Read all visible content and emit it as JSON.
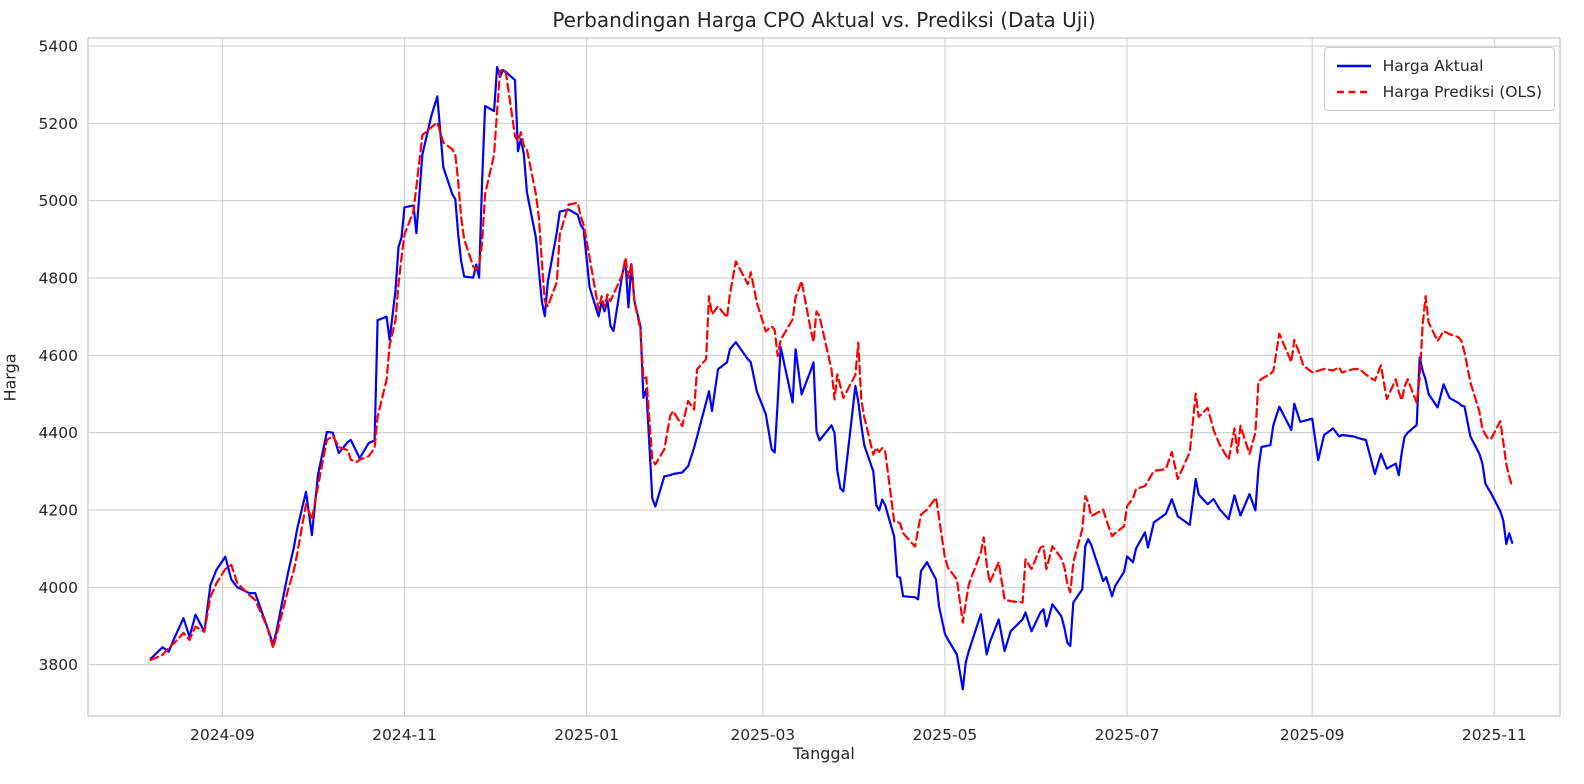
{
  "chart": {
    "background_color": "#ffffff",
    "grid_color": "#cccccc",
    "spine_color": "#cccccc",
    "text_color": "#262626"
  },
  "chart_data": {
    "type": "line",
    "title": "Perbandingan Harga CPO Aktual vs. Prediksi (Data Uji)",
    "xlabel": "Tanggal",
    "ylabel": "Harga",
    "grid": true,
    "legend_position": "upper right",
    "x_tick_labels": [
      "2024-09",
      "2024-11",
      "2025-01",
      "2025-03",
      "2025-05",
      "2025-07",
      "2025-09",
      "2025-11"
    ],
    "y_ticks": [
      3800,
      4000,
      4200,
      4400,
      4600,
      4800,
      5000,
      5200,
      5400
    ],
    "ylim": [
      3667,
      5421
    ],
    "xlim": [
      "2024-07-18",
      "2025-11-23"
    ],
    "series": [
      {
        "name": "Harga Aktual",
        "color": "#0000ff",
        "line_style": "solid",
        "points_column": 1
      },
      {
        "name": "Harga Prediksi (OLS)",
        "color": "#ff0000",
        "line_style": "dashed",
        "points_column": 2
      }
    ],
    "points_columns": [
      "date",
      "harga_aktual",
      "harga_prediksi_ols"
    ],
    "points": [
      [
        "2024-08-08",
        3815,
        3812
      ],
      [
        "2024-08-12",
        3845,
        3825
      ],
      [
        "2024-08-14",
        3833,
        3843
      ],
      [
        "2024-08-16",
        3870,
        3857
      ],
      [
        "2024-08-19",
        3920,
        3882
      ],
      [
        "2024-08-21",
        3872,
        3864
      ],
      [
        "2024-08-23",
        3929,
        3898
      ],
      [
        "2024-08-26",
        3885,
        3885
      ],
      [
        "2024-08-28",
        4006,
        3975
      ],
      [
        "2024-08-30",
        4045,
        4010
      ],
      [
        "2024-09-02",
        4079,
        4047
      ],
      [
        "2024-09-04",
        4020,
        4058
      ],
      [
        "2024-09-06",
        4000,
        4011
      ],
      [
        "2024-09-10",
        3985,
        3980
      ],
      [
        "2024-09-12",
        3985,
        3967
      ],
      [
        "2024-09-16",
        3898,
        3898
      ],
      [
        "2024-09-18",
        3852,
        3843
      ],
      [
        "2024-09-19",
        3882,
        3872
      ],
      [
        "2024-09-23",
        4037,
        3993
      ],
      [
        "2024-09-25",
        4105,
        4045
      ],
      [
        "2024-09-26",
        4149,
        4084
      ],
      [
        "2024-09-29",
        4247,
        4215
      ],
      [
        "2024-10-01",
        4135,
        4175
      ],
      [
        "2024-10-03",
        4290,
        4261
      ],
      [
        "2024-10-06",
        4402,
        4381
      ],
      [
        "2024-10-08",
        4400,
        4392
      ],
      [
        "2024-10-10",
        4347,
        4363
      ],
      [
        "2024-10-13",
        4376,
        4355
      ],
      [
        "2024-10-14",
        4381,
        4330
      ],
      [
        "2024-10-16",
        4350,
        4324
      ],
      [
        "2024-10-17",
        4334,
        4330
      ],
      [
        "2024-10-20",
        4373,
        4339
      ],
      [
        "2024-10-22",
        4380,
        4360
      ],
      [
        "2024-10-23",
        4691,
        4441
      ],
      [
        "2024-10-26",
        4700,
        4537
      ],
      [
        "2024-10-27",
        4640,
        4626
      ],
      [
        "2024-10-29",
        4768,
        4691
      ],
      [
        "2024-10-30",
        4880,
        4784
      ],
      [
        "2024-10-31",
        4905,
        4853
      ],
      [
        "2024-11-01",
        4983,
        4913
      ],
      [
        "2024-11-04",
        4988,
        4973
      ],
      [
        "2024-11-05",
        4916,
        5037
      ],
      [
        "2024-11-07",
        5120,
        5170
      ],
      [
        "2024-11-10",
        5220,
        5190
      ],
      [
        "2024-11-12",
        5270,
        5203
      ],
      [
        "2024-11-14",
        5087,
        5151
      ],
      [
        "2024-11-17",
        5017,
        5133
      ],
      [
        "2024-11-18",
        5004,
        5120
      ],
      [
        "2024-11-19",
        4913,
        5050
      ],
      [
        "2024-11-20",
        4843,
        4957
      ],
      [
        "2024-11-21",
        4804,
        4900
      ],
      [
        "2024-11-24",
        4801,
        4830
      ],
      [
        "2024-11-25",
        4835,
        4822
      ],
      [
        "2024-11-26",
        4801,
        4831
      ],
      [
        "2024-11-27",
        5050,
        4892
      ],
      [
        "2024-11-28",
        5245,
        5017
      ],
      [
        "2024-12-01",
        5232,
        5120
      ],
      [
        "2024-12-02",
        5346,
        5232
      ],
      [
        "2024-12-03",
        5320,
        5335
      ],
      [
        "2024-12-04",
        5338,
        5340
      ],
      [
        "2024-12-05",
        5333,
        5330
      ],
      [
        "2024-12-08",
        5312,
        5167
      ],
      [
        "2024-12-09",
        5128,
        5154
      ],
      [
        "2024-12-10",
        5159,
        5177
      ],
      [
        "2024-12-11",
        5120,
        5141
      ],
      [
        "2024-12-12",
        5022,
        5133
      ],
      [
        "2024-12-15",
        4905,
        5017
      ],
      [
        "2024-12-16",
        4820,
        4957
      ],
      [
        "2024-12-17",
        4740,
        4843
      ],
      [
        "2024-12-18",
        4701,
        4740
      ],
      [
        "2024-12-19",
        4790,
        4727
      ],
      [
        "2024-12-22",
        4918,
        4789
      ],
      [
        "2024-12-23",
        4972,
        4913
      ],
      [
        "2024-12-26",
        4977,
        4990
      ],
      [
        "2024-12-29",
        4964,
        4995
      ],
      [
        "2024-12-30",
        4938,
        4960
      ],
      [
        "2024-12-31",
        4926,
        4938
      ],
      [
        "2025-01-02",
        4776,
        4853
      ],
      [
        "2025-01-05",
        4701,
        4719
      ],
      [
        "2025-01-06",
        4737,
        4753
      ],
      [
        "2025-01-07",
        4714,
        4724
      ],
      [
        "2025-01-08",
        4742,
        4758
      ],
      [
        "2025-01-09",
        4676,
        4740
      ],
      [
        "2025-01-10",
        4663,
        4758
      ],
      [
        "2025-01-13",
        4813,
        4810
      ],
      [
        "2025-01-14",
        4844,
        4853
      ],
      [
        "2025-01-15",
        4724,
        4800
      ],
      [
        "2025-01-16",
        4836,
        4836
      ],
      [
        "2025-01-17",
        4740,
        4740
      ],
      [
        "2025-01-19",
        4676,
        4668
      ],
      [
        "2025-01-20",
        4490,
        4540
      ],
      [
        "2025-01-21",
        4513,
        4543
      ],
      [
        "2025-01-23",
        4230,
        4330
      ],
      [
        "2025-01-24",
        4209,
        4318
      ],
      [
        "2025-01-27",
        4287,
        4357
      ],
      [
        "2025-01-29",
        4290,
        4443
      ],
      [
        "2025-01-30",
        4293,
        4456
      ],
      [
        "2025-02-02",
        4297,
        4417
      ],
      [
        "2025-02-04",
        4313,
        4482
      ],
      [
        "2025-02-06",
        4361,
        4460
      ],
      [
        "2025-02-07",
        4390,
        4564
      ],
      [
        "2025-02-10",
        4478,
        4590
      ],
      [
        "2025-02-11",
        4507,
        4753
      ],
      [
        "2025-02-12",
        4456,
        4706
      ],
      [
        "2025-02-14",
        4564,
        4727
      ],
      [
        "2025-02-17",
        4582,
        4698
      ],
      [
        "2025-02-18",
        4616,
        4758
      ],
      [
        "2025-02-20",
        4634,
        4843
      ],
      [
        "2025-02-24",
        4590,
        4784
      ],
      [
        "2025-02-25",
        4582,
        4815
      ],
      [
        "2025-02-27",
        4507,
        4737
      ],
      [
        "2025-03-02",
        4448,
        4662
      ],
      [
        "2025-03-04",
        4357,
        4675
      ],
      [
        "2025-03-05",
        4349,
        4665
      ],
      [
        "2025-03-06",
        4480,
        4598
      ],
      [
        "2025-03-07",
        4621,
        4640
      ],
      [
        "2025-03-11",
        4478,
        4693
      ],
      [
        "2025-03-12",
        4616,
        4750
      ],
      [
        "2025-03-14",
        4499,
        4792
      ],
      [
        "2025-03-17",
        4560,
        4668
      ],
      [
        "2025-03-18",
        4582,
        4634
      ],
      [
        "2025-03-19",
        4403,
        4714
      ],
      [
        "2025-03-20",
        4380,
        4701
      ],
      [
        "2025-03-24",
        4419,
        4564
      ],
      [
        "2025-03-25",
        4400,
        4486
      ],
      [
        "2025-03-26",
        4300,
        4551
      ],
      [
        "2025-03-27",
        4256,
        4520
      ],
      [
        "2025-03-28",
        4248,
        4490
      ],
      [
        "2025-04-01",
        4521,
        4550
      ],
      [
        "2025-04-02",
        4480,
        4633
      ],
      [
        "2025-04-03",
        4419,
        4485
      ],
      [
        "2025-04-04",
        4367,
        4440
      ],
      [
        "2025-04-07",
        4300,
        4343
      ],
      [
        "2025-04-08",
        4212,
        4361
      ],
      [
        "2025-04-09",
        4199,
        4350
      ],
      [
        "2025-04-10",
        4227,
        4360
      ],
      [
        "2025-04-11",
        4212,
        4351
      ],
      [
        "2025-04-14",
        4131,
        4170
      ],
      [
        "2025-04-15",
        4028,
        4170
      ],
      [
        "2025-04-16",
        4025,
        4165
      ],
      [
        "2025-04-17",
        3977,
        4140
      ],
      [
        "2025-04-21",
        3974,
        4105
      ],
      [
        "2025-04-22",
        3969,
        4150
      ],
      [
        "2025-04-23",
        4042,
        4188
      ],
      [
        "2025-04-25",
        4065,
        4201
      ],
      [
        "2025-04-28",
        4020,
        4232
      ],
      [
        "2025-04-29",
        3951,
        4180
      ],
      [
        "2025-05-01",
        3880,
        4077
      ],
      [
        "2025-05-02",
        3865,
        4051
      ],
      [
        "2025-05-05",
        3826,
        4020
      ],
      [
        "2025-05-07",
        3736,
        3909
      ],
      [
        "2025-05-08",
        3806,
        3960
      ],
      [
        "2025-05-09",
        3835,
        4007
      ],
      [
        "2025-05-13",
        3930,
        4090
      ],
      [
        "2025-05-14",
        3880,
        4129
      ],
      [
        "2025-05-15",
        3826,
        4060
      ],
      [
        "2025-05-16",
        3857,
        4012
      ],
      [
        "2025-05-19",
        3917,
        4065
      ],
      [
        "2025-05-21",
        3835,
        3969
      ],
      [
        "2025-05-23",
        3886,
        3964
      ],
      [
        "2025-05-27",
        3917,
        3961
      ],
      [
        "2025-05-28",
        3935,
        4072
      ],
      [
        "2025-05-30",
        3886,
        4047
      ],
      [
        "2025-06-02",
        3935,
        4103
      ],
      [
        "2025-06-03",
        3943,
        4106
      ],
      [
        "2025-06-04",
        3899,
        4047
      ],
      [
        "2025-06-06",
        3956,
        4106
      ],
      [
        "2025-06-09",
        3925,
        4075
      ],
      [
        "2025-06-10",
        3895,
        4052
      ],
      [
        "2025-06-11",
        3857,
        4010
      ],
      [
        "2025-06-12",
        3848,
        3987
      ],
      [
        "2025-06-13",
        3961,
        4065
      ],
      [
        "2025-06-16",
        3995,
        4150
      ],
      [
        "2025-06-17",
        4106,
        4236
      ],
      [
        "2025-06-18",
        4124,
        4220
      ],
      [
        "2025-06-19",
        4110,
        4184
      ],
      [
        "2025-06-23",
        4016,
        4201
      ],
      [
        "2025-06-24",
        4026,
        4175
      ],
      [
        "2025-06-26",
        3977,
        4132
      ],
      [
        "2025-06-27",
        4003,
        4140
      ],
      [
        "2025-06-30",
        4040,
        4158
      ],
      [
        "2025-07-01",
        4080,
        4210
      ],
      [
        "2025-07-03",
        4065,
        4230
      ],
      [
        "2025-07-04",
        4100,
        4254
      ],
      [
        "2025-07-07",
        4142,
        4262
      ],
      [
        "2025-07-08",
        4103,
        4275
      ],
      [
        "2025-07-10",
        4168,
        4301
      ],
      [
        "2025-07-14",
        4190,
        4306
      ],
      [
        "2025-07-16",
        4228,
        4350
      ],
      [
        "2025-07-18",
        4184,
        4280
      ],
      [
        "2025-07-22",
        4161,
        4350
      ],
      [
        "2025-07-24",
        4280,
        4501
      ],
      [
        "2025-07-25",
        4240,
        4441
      ],
      [
        "2025-07-28",
        4215,
        4464
      ],
      [
        "2025-07-30",
        4228,
        4407
      ],
      [
        "2025-08-01",
        4202,
        4369
      ],
      [
        "2025-08-04",
        4176,
        4330
      ],
      [
        "2025-08-06",
        4238,
        4411
      ],
      [
        "2025-08-07",
        4210,
        4348
      ],
      [
        "2025-08-08",
        4186,
        4418
      ],
      [
        "2025-08-11",
        4241,
        4345
      ],
      [
        "2025-08-13",
        4199,
        4400
      ],
      [
        "2025-08-14",
        4306,
        4529
      ],
      [
        "2025-08-15",
        4363,
        4539
      ],
      [
        "2025-08-18",
        4368,
        4552
      ],
      [
        "2025-08-19",
        4420,
        4560
      ],
      [
        "2025-08-21",
        4467,
        4656
      ],
      [
        "2025-08-25",
        4407,
        4583
      ],
      [
        "2025-08-26",
        4475,
        4640
      ],
      [
        "2025-08-28",
        4428,
        4600
      ],
      [
        "2025-08-29",
        4430,
        4574
      ],
      [
        "2025-09-01",
        4436,
        4556
      ],
      [
        "2025-09-03",
        4329,
        4560
      ],
      [
        "2025-09-05",
        4394,
        4565
      ],
      [
        "2025-09-08",
        4411,
        4561
      ],
      [
        "2025-09-10",
        4390,
        4569
      ],
      [
        "2025-09-11",
        4394,
        4556
      ],
      [
        "2025-09-15",
        4390,
        4565
      ],
      [
        "2025-09-17",
        4385,
        4564
      ],
      [
        "2025-09-19",
        4381,
        4550
      ],
      [
        "2025-09-22",
        4293,
        4535
      ],
      [
        "2025-09-24",
        4345,
        4574
      ],
      [
        "2025-09-26",
        4307,
        4487
      ],
      [
        "2025-09-29",
        4320,
        4538
      ],
      [
        "2025-09-30",
        4290,
        4505
      ],
      [
        "2025-10-01",
        4350,
        4484
      ],
      [
        "2025-10-02",
        4390,
        4520
      ],
      [
        "2025-10-03",
        4400,
        4538
      ],
      [
        "2025-10-06",
        4420,
        4477
      ],
      [
        "2025-10-07",
        4595,
        4543
      ],
      [
        "2025-10-08",
        4560,
        4680
      ],
      [
        "2025-10-09",
        4537,
        4753
      ],
      [
        "2025-10-10",
        4500,
        4685
      ],
      [
        "2025-10-13",
        4465,
        4637
      ],
      [
        "2025-10-15",
        4525,
        4663
      ],
      [
        "2025-10-17",
        4490,
        4655
      ],
      [
        "2025-10-20",
        4477,
        4647
      ],
      [
        "2025-10-21",
        4470,
        4637
      ],
      [
        "2025-10-22",
        4468,
        4608
      ],
      [
        "2025-10-24",
        4390,
        4530
      ],
      [
        "2025-10-27",
        4345,
        4455
      ],
      [
        "2025-10-28",
        4320,
        4409
      ],
      [
        "2025-10-29",
        4268,
        4395
      ],
      [
        "2025-10-30",
        4255,
        4383
      ],
      [
        "2025-10-31",
        4242,
        4385
      ],
      [
        "2025-11-03",
        4197,
        4430
      ],
      [
        "2025-11-04",
        4172,
        4375
      ],
      [
        "2025-11-05",
        4112,
        4318
      ],
      [
        "2025-11-06",
        4140,
        4287
      ],
      [
        "2025-11-07",
        4115,
        4260
      ]
    ]
  }
}
